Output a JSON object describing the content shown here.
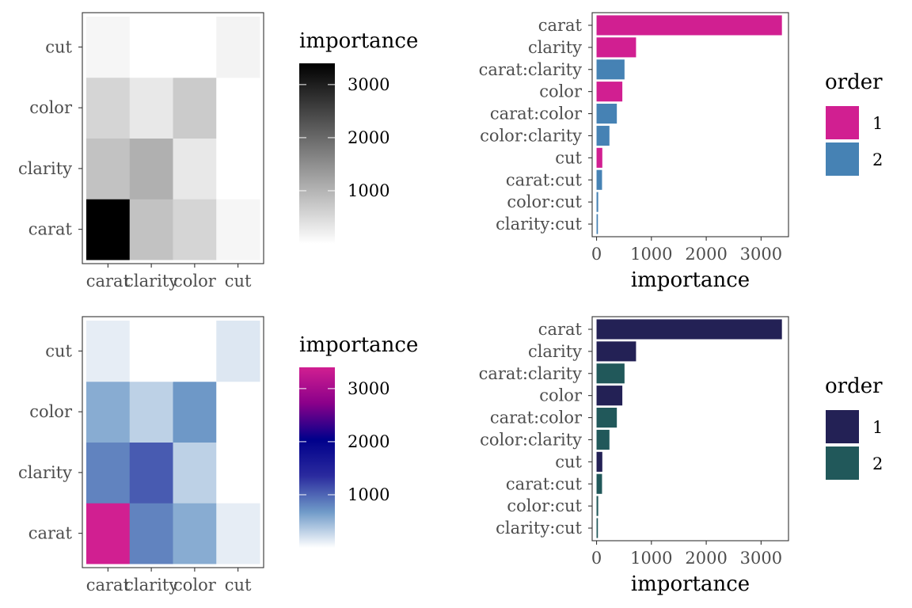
{
  "chart_data": [
    {
      "type": "heatmap",
      "x_categories": [
        "carat",
        "clarity",
        "color",
        "cut"
      ],
      "y_categories": [
        "carat",
        "clarity",
        "color",
        "cut"
      ],
      "values": [
        [
          3400,
          820,
          560,
          120
        ],
        [
          820,
          1060,
          310,
          0
        ],
        [
          560,
          310,
          690,
          0
        ],
        [
          120,
          0,
          0,
          160
        ]
      ],
      "legend_title": "importance",
      "legend_ticks": [
        1000,
        2000,
        3000
      ],
      "value_range": [
        0,
        3400
      ],
      "colorscale": [
        "#ffffff",
        "#000000"
      ]
    },
    {
      "type": "bar",
      "orientation": "horizontal",
      "categories": [
        "carat",
        "clarity",
        "carat:clarity",
        "color",
        "carat:color",
        "color:clarity",
        "cut",
        "carat:cut",
        "color:cut",
        "clarity:cut"
      ],
      "values": [
        3380,
        720,
        510,
        470,
        370,
        235,
        105,
        100,
        30,
        25
      ],
      "order": [
        1,
        1,
        2,
        1,
        2,
        2,
        1,
        2,
        2,
        2
      ],
      "xlabel": "importance",
      "x_ticks": [
        0,
        1000,
        2000,
        3000
      ],
      "xlim": [
        -80,
        3500
      ],
      "legend_title": "order",
      "legend": [
        {
          "label": "1",
          "color": "#d11f91"
        },
        {
          "label": "2",
          "color": "#4682b4"
        }
      ]
    },
    {
      "type": "heatmap",
      "x_categories": [
        "carat",
        "clarity",
        "color",
        "cut"
      ],
      "y_categories": [
        "carat",
        "clarity",
        "color",
        "cut"
      ],
      "values": [
        [
          3400,
          820,
          560,
          120
        ],
        [
          820,
          1060,
          310,
          0
        ],
        [
          560,
          310,
          690,
          0
        ],
        [
          120,
          0,
          0,
          160
        ]
      ],
      "legend_title": "importance",
      "legend_ticks": [
        1000,
        2000,
        3000
      ],
      "value_range": [
        0,
        3400
      ],
      "colorscale": [
        "#ffffff",
        "#6f9ac8",
        "#2a2a9e",
        "#00008b",
        "#8a008a",
        "#d11f91"
      ]
    },
    {
      "type": "bar",
      "orientation": "horizontal",
      "categories": [
        "carat",
        "clarity",
        "carat:clarity",
        "color",
        "carat:color",
        "color:clarity",
        "cut",
        "carat:cut",
        "color:cut",
        "clarity:cut"
      ],
      "values": [
        3380,
        720,
        510,
        470,
        370,
        235,
        105,
        100,
        30,
        25
      ],
      "order": [
        1,
        1,
        2,
        1,
        2,
        2,
        1,
        2,
        2,
        2
      ],
      "xlabel": "importance",
      "x_ticks": [
        0,
        1000,
        2000,
        3000
      ],
      "xlim": [
        -80,
        3500
      ],
      "legend_title": "order",
      "legend": [
        {
          "label": "1",
          "color": "#232155"
        },
        {
          "label": "2",
          "color": "#21585a"
        }
      ]
    }
  ]
}
